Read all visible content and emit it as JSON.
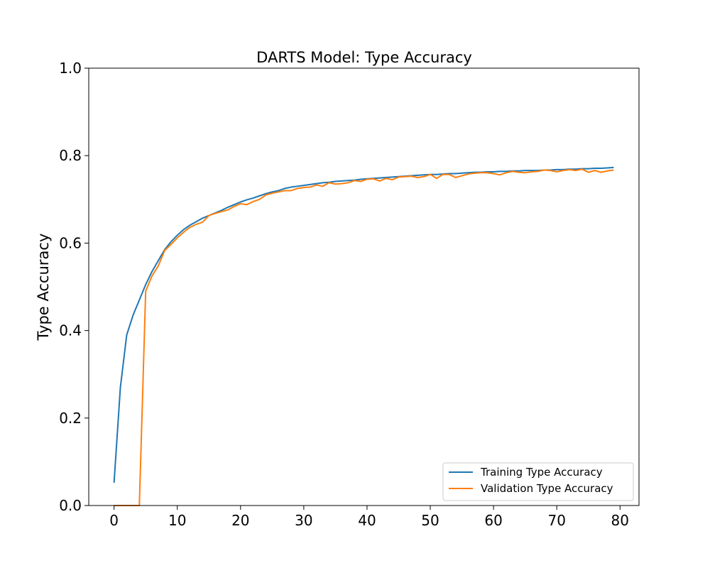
{
  "chart_data": {
    "type": "line",
    "title": "DARTS Model: Type Accuracy",
    "xlabel": "",
    "ylabel": "Type Accuracy",
    "xlim": [
      -4,
      83
    ],
    "ylim": [
      0.0,
      1.0
    ],
    "x_ticks": [
      0,
      10,
      20,
      30,
      40,
      50,
      60,
      70,
      80
    ],
    "y_ticks": [
      0.0,
      0.2,
      0.4,
      0.6,
      0.8,
      1.0
    ],
    "x_tick_labels": [
      "0",
      "10",
      "20",
      "30",
      "40",
      "50",
      "60",
      "70",
      "80"
    ],
    "y_tick_labels": [
      "0.0",
      "0.2",
      "0.4",
      "0.6",
      "0.8",
      "1.0"
    ],
    "grid": false,
    "legend_position": "bottom-right",
    "x": [
      0,
      1,
      2,
      3,
      4,
      5,
      6,
      7,
      8,
      9,
      10,
      11,
      12,
      13,
      14,
      15,
      16,
      17,
      18,
      19,
      20,
      21,
      22,
      23,
      24,
      25,
      26,
      27,
      28,
      29,
      30,
      31,
      32,
      33,
      34,
      35,
      36,
      37,
      38,
      39,
      40,
      41,
      42,
      43,
      44,
      45,
      46,
      47,
      48,
      49,
      50,
      51,
      52,
      53,
      54,
      55,
      56,
      57,
      58,
      59,
      60,
      61,
      62,
      63,
      64,
      65,
      66,
      67,
      68,
      69,
      70,
      71,
      72,
      73,
      74,
      75,
      76,
      77,
      78,
      79
    ],
    "series": [
      {
        "name": "Training Type Accuracy",
        "color": "#1f77b4",
        "values": [
          0.052,
          0.27,
          0.39,
          0.435,
          0.47,
          0.505,
          0.535,
          0.56,
          0.585,
          0.603,
          0.618,
          0.631,
          0.641,
          0.649,
          0.657,
          0.663,
          0.669,
          0.675,
          0.682,
          0.688,
          0.694,
          0.699,
          0.703,
          0.708,
          0.713,
          0.717,
          0.72,
          0.725,
          0.728,
          0.73,
          0.732,
          0.734,
          0.736,
          0.738,
          0.739,
          0.741,
          0.742,
          0.743,
          0.744,
          0.746,
          0.747,
          0.748,
          0.749,
          0.75,
          0.751,
          0.752,
          0.753,
          0.754,
          0.755,
          0.756,
          0.757,
          0.757,
          0.758,
          0.759,
          0.759,
          0.76,
          0.761,
          0.762,
          0.762,
          0.763,
          0.763,
          0.764,
          0.764,
          0.765,
          0.765,
          0.766,
          0.766,
          0.766,
          0.767,
          0.767,
          0.768,
          0.768,
          0.769,
          0.769,
          0.77,
          0.77,
          0.771,
          0.771,
          0.772,
          0.773
        ]
      },
      {
        "name": "Validation Type Accuracy",
        "color": "#ff7f0e",
        "values": [
          0.0,
          0.0,
          0.0,
          0.0,
          0.0,
          0.49,
          0.525,
          0.548,
          0.583,
          0.597,
          0.612,
          0.625,
          0.636,
          0.643,
          0.648,
          0.663,
          0.668,
          0.672,
          0.676,
          0.684,
          0.69,
          0.688,
          0.695,
          0.7,
          0.71,
          0.714,
          0.717,
          0.72,
          0.72,
          0.725,
          0.727,
          0.728,
          0.733,
          0.73,
          0.738,
          0.735,
          0.736,
          0.738,
          0.743,
          0.741,
          0.746,
          0.747,
          0.742,
          0.748,
          0.745,
          0.751,
          0.752,
          0.753,
          0.75,
          0.752,
          0.757,
          0.748,
          0.757,
          0.757,
          0.75,
          0.754,
          0.758,
          0.76,
          0.761,
          0.761,
          0.759,
          0.756,
          0.761,
          0.764,
          0.762,
          0.761,
          0.763,
          0.764,
          0.767,
          0.766,
          0.763,
          0.766,
          0.768,
          0.766,
          0.769,
          0.762,
          0.766,
          0.762,
          0.765,
          0.767
        ]
      }
    ]
  }
}
